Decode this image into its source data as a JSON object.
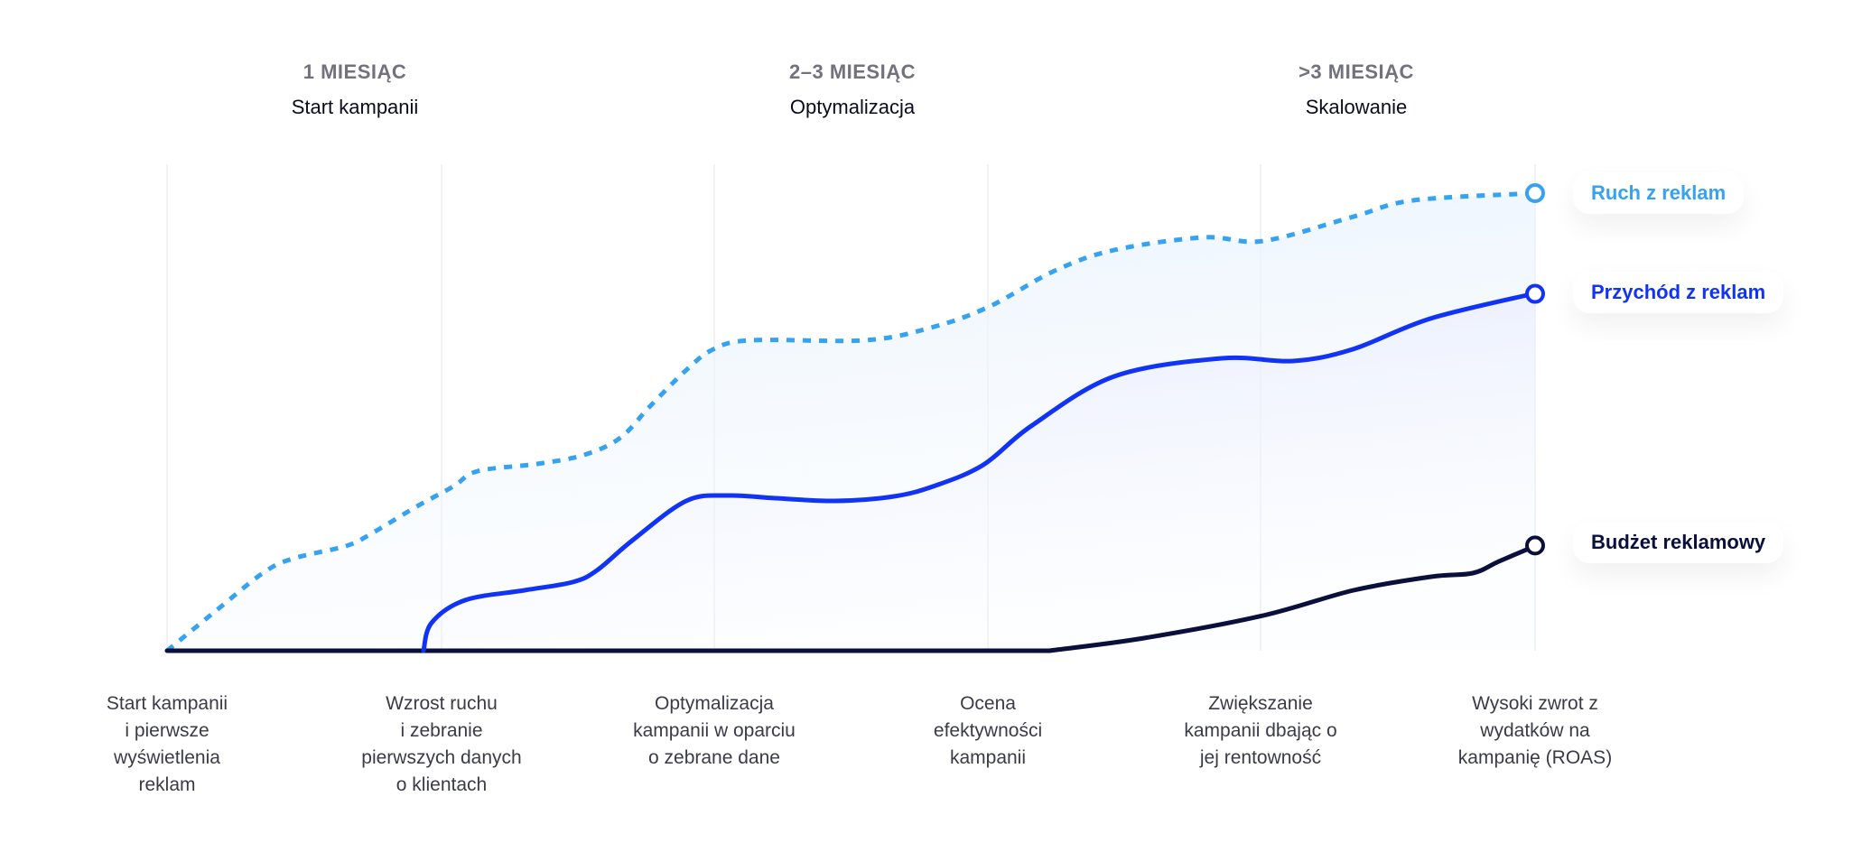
{
  "phases": [
    {
      "period": "1 MIESIĄC",
      "name": "Start kampanii"
    },
    {
      "period": "2–3 MIESIĄC",
      "name": "Optymalizacja"
    },
    {
      "period": ">3 MIESIĄC",
      "name": "Skalowanie"
    }
  ],
  "chart_data": {
    "type": "line",
    "title": "",
    "xlabel": "",
    "ylabel": "",
    "ylim": [
      0,
      100
    ],
    "grid": "vertical",
    "legend": "right",
    "categories": [
      "Start kampanii i pierwsze wyświetlenia reklam",
      "Wzrost ruchu i zebranie pierwszych danych o klientach",
      "Optymalizacja kampanii w oparciu o zebrane dane",
      "Ocena efektywności kampanii",
      "Zwiększanie kampanii dbając o jej rentowność",
      "Wysoki zwrot z wydatków na kampanię (ROAS)"
    ],
    "category_lines": [
      [
        "Start kampanii",
        "i pierwsze",
        "wyświetlenia",
        "reklam"
      ],
      [
        "Wzrost ruchu",
        "i zebranie",
        "pierwszych danych",
        "o klientach"
      ],
      [
        "Optymalizacja",
        "kampanii w oparciu",
        "o zebrane dane"
      ],
      [
        "Ocena",
        "efektywności",
        "kampanii"
      ],
      [
        "Zwiększanie",
        "kampanii dbając o",
        "jej rentowność"
      ],
      [
        "Wysoki zwrot z",
        "wydatków na",
        "kampanię (ROAS)"
      ]
    ],
    "series": [
      {
        "name": "Ruch z reklam",
        "style": "dashed",
        "color": "#35a2f2",
        "values": [
          0,
          38,
          66,
          75,
          90,
          100
        ]
      },
      {
        "name": "Przychód z reklam",
        "style": "solid",
        "color": "#1133f5",
        "values": [
          0,
          0,
          33,
          42,
          64,
          78
        ]
      },
      {
        "name": "Budżet reklamowy",
        "style": "solid",
        "color": "#0a0f3c",
        "values": [
          0,
          0,
          0,
          0,
          7.5,
          23
        ]
      }
    ]
  }
}
